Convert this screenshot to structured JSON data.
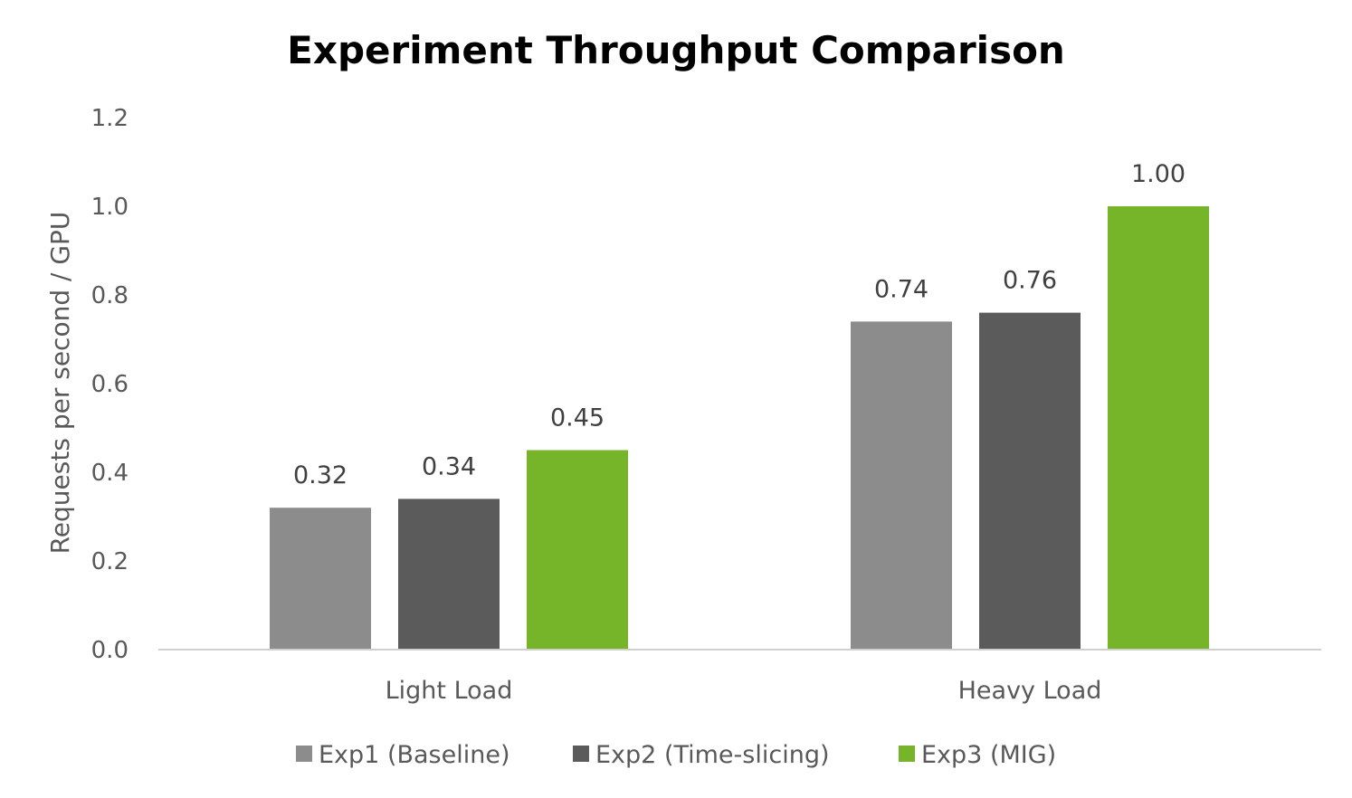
{
  "chart_data": {
    "type": "bar",
    "title": "Experiment Throughput Comparison",
    "xlabel": "",
    "ylabel": "Requests per second / GPU",
    "ylim": [
      0,
      1.2
    ],
    "yticks": [
      "0.0",
      "0.2",
      "0.4",
      "0.6",
      "0.8",
      "1.0",
      "1.2"
    ],
    "categories": [
      "Light Load",
      "Heavy Load"
    ],
    "series": [
      {
        "name": "Exp1 (Baseline)",
        "values": [
          0.32,
          0.74
        ],
        "labels": [
          "0.32",
          "0.74"
        ],
        "color": "#8c8c8c"
      },
      {
        "name": "Exp2 (Time-slicing)",
        "values": [
          0.34,
          0.76
        ],
        "labels": [
          "0.34",
          "0.76"
        ],
        "color": "#5b5b5b"
      },
      {
        "name": "Exp3 (MIG)",
        "values": [
          0.45,
          1.0
        ],
        "labels": [
          "0.45",
          "1.00"
        ],
        "color": "#76b52a"
      }
    ],
    "grid": false,
    "legend": "bottom"
  }
}
